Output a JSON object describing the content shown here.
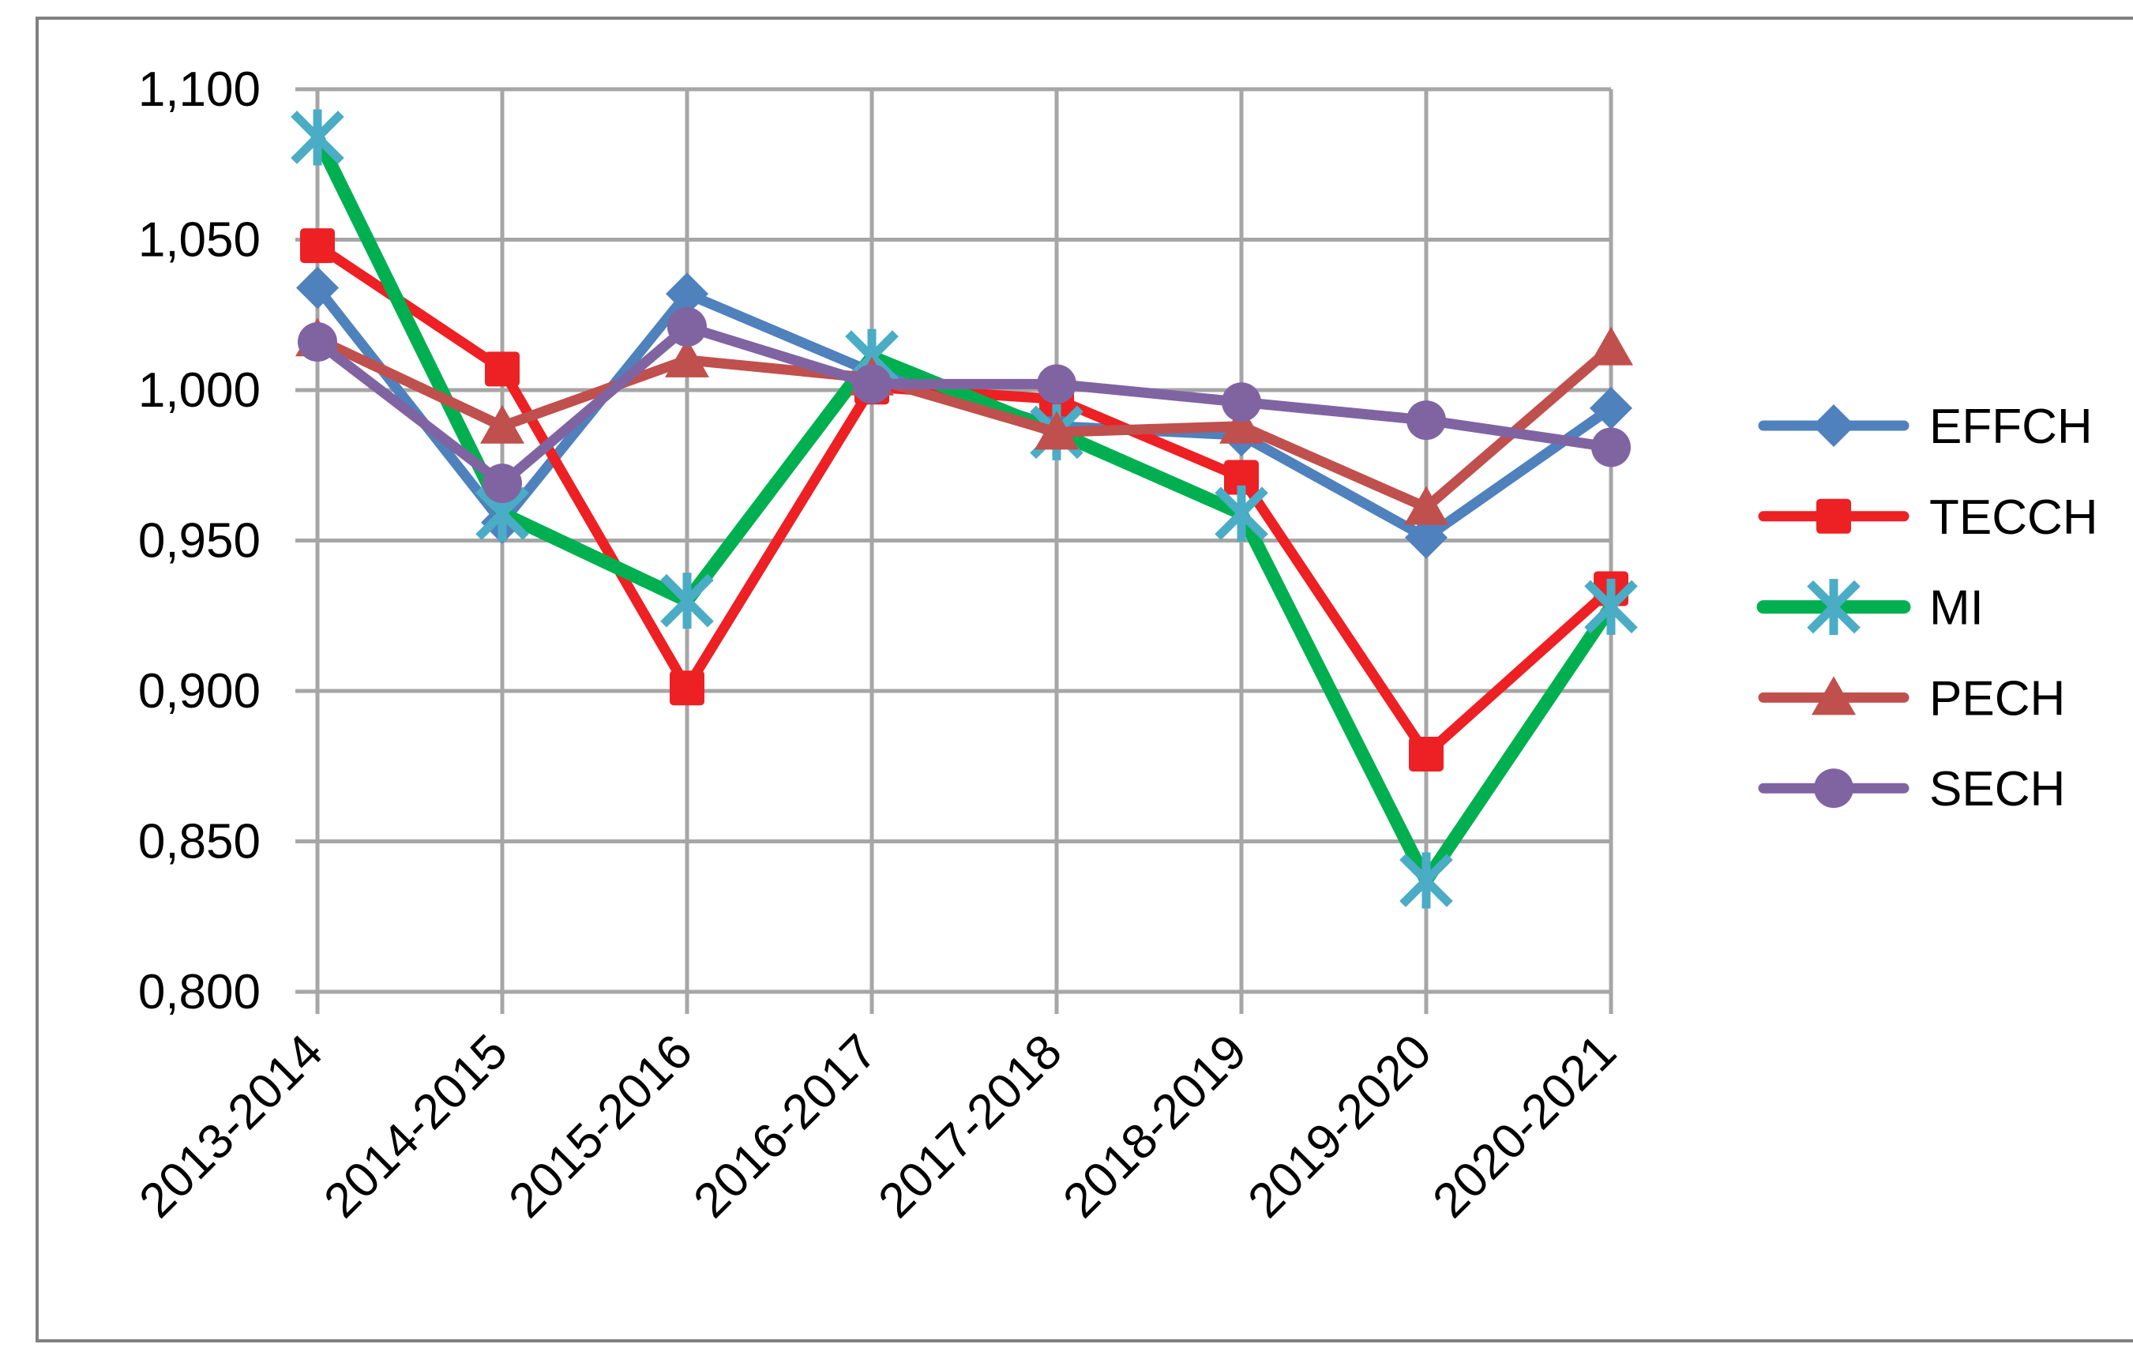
{
  "chart_data": {
    "type": "line",
    "title": "",
    "xlabel": "",
    "ylabel": "",
    "categories": [
      "2013-2014",
      "2014-2015",
      "2015-2016",
      "2016-2017",
      "2017-2018",
      "2018-2019",
      "2019-2020",
      "2020-2021"
    ],
    "series": [
      {
        "name": "EFFCH",
        "color": "#4F81BD",
        "marker": "diamond",
        "marker_color": "#4F81BD",
        "values": [
          1.034,
          0.956,
          1.032,
          1.006,
          0.988,
          0.985,
          0.951,
          0.994
        ]
      },
      {
        "name": "TECCH",
        "color": "#ED2024",
        "marker": "square",
        "marker_color": "#ED2024",
        "values": [
          1.048,
          1.007,
          0.901,
          1.001,
          0.997,
          0.971,
          0.879,
          0.934
        ]
      },
      {
        "name": "MI",
        "color": "#00B050",
        "marker": "asterisk",
        "marker_color": "#4BACC6",
        "values": [
          1.084,
          0.959,
          0.93,
          1.011,
          0.986,
          0.959,
          0.837,
          0.928
        ]
      },
      {
        "name": "PECH",
        "color": "#C0504D",
        "marker": "triangle",
        "marker_color": "#C0504D",
        "values": [
          1.017,
          0.988,
          1.01,
          1.004,
          0.986,
          0.988,
          0.961,
          1.014
        ]
      },
      {
        "name": "SECH",
        "color": "#8064A2",
        "marker": "circle",
        "marker_color": "#8064A2",
        "values": [
          1.016,
          0.969,
          1.021,
          1.002,
          1.002,
          0.996,
          0.99,
          0.981
        ]
      }
    ],
    "ylim": [
      0.8,
      1.1
    ],
    "ytick_step": 0.05,
    "ytick_labels": [
      "0,800",
      "0,850",
      "0,900",
      "0,950",
      "1,000",
      "1,050",
      "1,100"
    ],
    "grid": true,
    "legend_position": "right",
    "legend_entries": [
      "EFFCH",
      "TECCH",
      "MI",
      "PECH",
      "SECH"
    ]
  },
  "style_colors": {
    "grid": "#A6A6A6",
    "axis": "#A6A6A6",
    "text": "#000000",
    "border": "#808080",
    "background": "#FFFFFF"
  }
}
